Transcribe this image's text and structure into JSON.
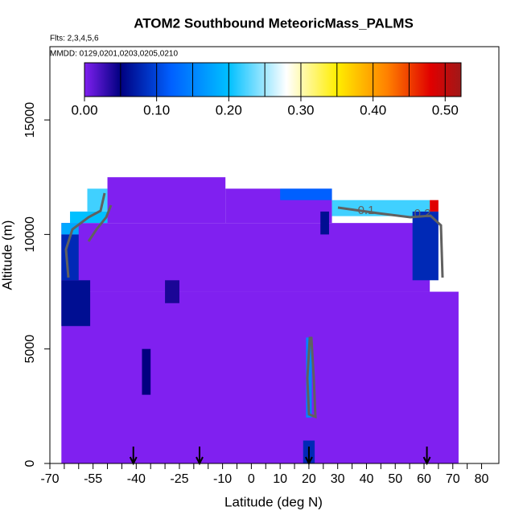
{
  "chart_data": {
    "type": "curtain",
    "title": "ATOM2 Southbound MeteoricMass_PALMS",
    "subtitle": "Flts: 2,3,4,5,6",
    "annotation": "MMDD: 0129,0201,0203,0205,0210",
    "x_label": "Latitude (deg N)",
    "y_label": "Altitude (m)",
    "xlim": [
      -70,
      86
    ],
    "ylim": [
      0,
      18200
    ],
    "xticks": [
      -70,
      -55,
      -40,
      -25,
      -10,
      0,
      10,
      20,
      30,
      40,
      50,
      60,
      70,
      80
    ],
    "xticks_minor": [
      -65,
      -60,
      -50,
      -45,
      -35,
      -30,
      -20,
      -15,
      -5,
      5,
      15,
      25,
      35,
      45,
      55,
      65,
      75
    ],
    "yticks": [
      0,
      5000,
      10000,
      15000
    ],
    "colorbar_lim": [
      0,
      0.522
    ],
    "colorbar_ticks": [
      {
        "value": 0,
        "label": "0.00"
      },
      {
        "value": 0.1,
        "label": "0.10"
      },
      {
        "value": 0.2,
        "label": "0.20"
      },
      {
        "value": 0.3,
        "label": "0.30"
      },
      {
        "value": 0.4,
        "label": "0.40"
      },
      {
        "value": 0.5,
        "label": "0.50"
      }
    ],
    "colorbar_breaks": [
      0.05,
      0.1,
      0.15,
      0.2,
      0.25,
      0.3,
      0.35,
      0.4,
      0.45,
      0.5
    ],
    "colorscale": [
      [
        0,
        "#8020f0"
      ],
      [
        0.05,
        "#000080"
      ],
      [
        0.12,
        "#0060ff"
      ],
      [
        0.2,
        "#00c0ff"
      ],
      [
        0.28,
        "#ffffff"
      ],
      [
        0.35,
        "#ffee00"
      ],
      [
        0.42,
        "#ff8000"
      ],
      [
        0.48,
        "#e00000"
      ],
      [
        0.522,
        "#a01818"
      ]
    ],
    "cells": [
      [
        -66,
        72,
        0,
        7500,
        0.0
      ],
      [
        -66,
        62,
        7500,
        10500,
        0.0
      ],
      [
        -50,
        -9,
        10500,
        12500,
        0.0
      ],
      [
        -9,
        28,
        10500,
        12000,
        0.0
      ],
      [
        -66,
        -56,
        6000,
        8000,
        0.06
      ],
      [
        -66,
        -60,
        8000,
        10000,
        0.08
      ],
      [
        -66,
        -60,
        10000,
        10500,
        0.18
      ],
      [
        -63,
        -50,
        10500,
        11000,
        0.2
      ],
      [
        -57,
        -50,
        11000,
        12000,
        0.22
      ],
      [
        10,
        28,
        11500,
        12000,
        0.12
      ],
      [
        28,
        62,
        10800,
        11500,
        0.22
      ],
      [
        56,
        65,
        8000,
        11000,
        0.08
      ],
      [
        62,
        65,
        11000,
        11500,
        0.48
      ],
      [
        19,
        21,
        2000,
        5500,
        0.15
      ],
      [
        18,
        22,
        0,
        1000,
        0.08
      ],
      [
        -38,
        -35,
        3000,
        5000,
        0.05
      ],
      [
        -30,
        -25,
        7000,
        8000,
        0.04
      ],
      [
        24,
        27,
        10000,
        11000,
        0.06
      ]
    ],
    "arrows_lat": [
      -41,
      -18,
      20,
      61
    ],
    "contour_labels": [
      "0.1",
      "0.2"
    ]
  }
}
